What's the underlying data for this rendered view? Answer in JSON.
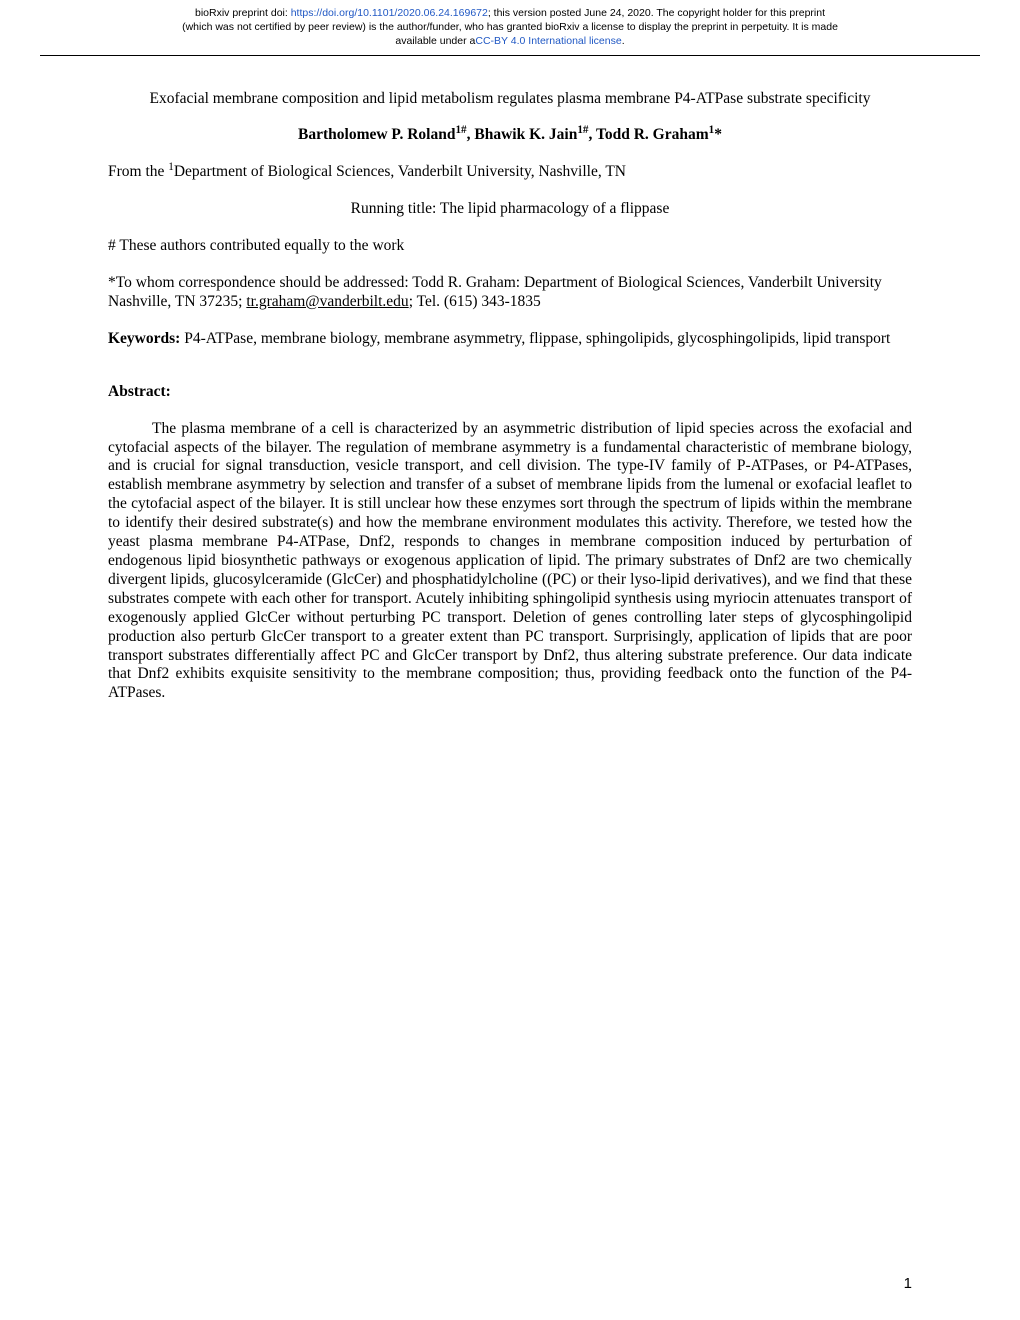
{
  "preprint": {
    "line1_pre": "bioRxiv preprint doi: ",
    "doi_url": "https://doi.org/10.1101/2020.06.24.169672",
    "line1_post": "; this version posted June 24, 2020. The copyright holder for this preprint",
    "line2": "(which was not certified by peer review) is the author/funder, who has granted bioRxiv a license to display the preprint in perpetuity. It is made",
    "line3_pre": "available under a",
    "license_text": "CC-BY 4.0 International license",
    "line3_post": "."
  },
  "title": "Exofacial membrane composition and lipid metabolism regulates plasma membrane P4-ATPase substrate specificity",
  "authors": {
    "a1_name": "Bartholomew P. Roland",
    "a1_sup": "1#",
    "sep1": ", ",
    "a2_name": "Bhawik K. Jain",
    "a2_sup": "1#",
    "sep2": ", ",
    "a3_name": "Todd R. Graham",
    "a3_sup": "1",
    "a3_mark": "*"
  },
  "affil": {
    "pre": "From the ",
    "sup": "1",
    "post": "Department of Biological Sciences, Vanderbilt University, Nashville, TN"
  },
  "running_title": "Running title: The lipid pharmacology of a flippase",
  "equal_contrib": "# These authors contributed equally to the work",
  "corr": {
    "pre": "*To whom correspondence should be addressed: Todd R. Graham: Department of Biological Sciences, Vanderbilt University Nashville, TN 37235; ",
    "email": "tr.graham@vanderbilt.edu",
    "post": "; Tel. (615) 343-1835"
  },
  "keywords": {
    "label": "Keywords: ",
    "text": "P4-ATPase, membrane biology, membrane asymmetry, flippase, sphingolipids, glycosphingolipids, lipid transport"
  },
  "abstract": {
    "heading": "Abstract:",
    "body": "The plasma membrane of a cell is characterized by an asymmetric distribution of lipid species across the exofacial and cytofacial aspects of the bilayer. The regulation of membrane asymmetry is a fundamental characteristic of membrane biology, and is crucial for signal transduction, vesicle transport, and cell division. The type-IV family of P-ATPases, or P4-ATPases, establish membrane asymmetry by selection and transfer of a subset of membrane lipids from the lumenal or exofacial leaflet to the cytofacial aspect of the bilayer. It is still unclear how these enzymes sort through the spectrum of lipids within the membrane to identify their desired substrate(s) and how the membrane environment modulates this activity. Therefore, we tested how the yeast plasma membrane P4-ATPase, Dnf2, responds to changes in membrane composition induced by perturbation of endogenous lipid biosynthetic pathways or exogenous application of lipid. The primary substrates of Dnf2 are two chemically divergent lipids, glucosylceramide (GlcCer) and phosphatidylcholine ((PC) or their lyso-lipid derivatives), and we find that these substrates compete with each other for transport. Acutely inhibiting sphingolipid synthesis using myriocin attenuates transport of exogenously applied GlcCer without perturbing PC transport. Deletion of genes controlling later steps of glycosphingolipid production also perturb GlcCer transport to a greater extent than PC transport. Surprisingly, application of lipids that are poor transport substrates differentially affect PC and GlcCer transport by Dnf2, thus altering substrate preference. Our data indicate that Dnf2 exhibits exquisite sensitivity to the membrane composition; thus, providing feedback onto the function of the P4-ATPases."
  },
  "page_number": "1",
  "colors": {
    "link": "#2058c4",
    "text": "#000000",
    "bg": "#ffffff"
  }
}
